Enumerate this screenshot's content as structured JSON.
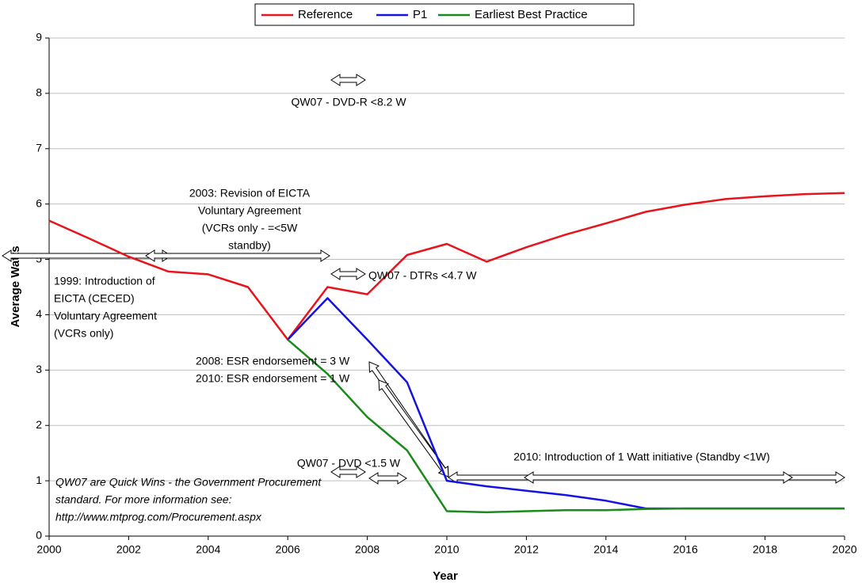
{
  "chart_data": {
    "type": "line",
    "x": [
      2000,
      2001,
      2002,
      2003,
      2004,
      2005,
      2006,
      2007,
      2008,
      2009,
      2010,
      2011,
      2012,
      2013,
      2014,
      2015,
      2016,
      2017,
      2018,
      2019,
      2020
    ],
    "series": [
      {
        "name": "Reference",
        "color": "#e8141c",
        "values": [
          5.7,
          5.38,
          5.05,
          4.78,
          4.73,
          4.5,
          3.55,
          4.5,
          4.37,
          5.08,
          5.28,
          4.96,
          5.22,
          5.45,
          5.65,
          5.86,
          5.99,
          6.09,
          6.14,
          6.18,
          6.2
        ]
      },
      {
        "name": "P1",
        "color": "#1414e0",
        "values": [
          null,
          null,
          null,
          null,
          null,
          null,
          3.55,
          4.3,
          3.55,
          2.78,
          1.0,
          0.9,
          0.82,
          0.74,
          0.64,
          0.5,
          0.5,
          0.5,
          0.5,
          0.5,
          0.5
        ]
      },
      {
        "name": "Earliest Best Practice",
        "color": "#1a8a1a",
        "values": [
          null,
          null,
          null,
          null,
          null,
          null,
          3.55,
          2.93,
          2.15,
          1.55,
          0.45,
          0.43,
          0.45,
          0.47,
          0.47,
          0.49,
          0.5,
          0.5,
          0.5,
          0.5,
          0.5
        ]
      }
    ],
    "xlabel": "Year",
    "ylabel": "Average Watts",
    "xlim": [
      2000,
      2020
    ],
    "xticks": [
      2000,
      2002,
      2004,
      2006,
      2008,
      2010,
      2012,
      2014,
      2016,
      2018,
      2020
    ],
    "ylim": [
      0,
      9
    ],
    "yticks": [
      0,
      1,
      2,
      3,
      4,
      5,
      6,
      7,
      8,
      9
    ],
    "grid": true,
    "legend": "top",
    "annotations": [
      [
        "QW07 - DVD-R <8.2 W"
      ],
      [
        "2003: Revision of EICTA",
        "Voluntary Agreement",
        "(VCRs only - =<5W",
        "standby)"
      ],
      [
        "1999: Introduction of",
        "EICTA (CECED)",
        "Voluntary Agreement",
        "(VCRs only)"
      ],
      [
        "QW07 - DTRs <4.7 W"
      ],
      [
        "2008: ESR endorsement = 3 W",
        "2010: ESR endorsement = 1 W"
      ],
      [
        "QW07 - DVD <1.5 W"
      ],
      [
        "2010: Introduction of 1 Watt initiative (Standby <1W)"
      ],
      [
        "QW07 are Quick Wins - the Government Procurement",
        "standard. For more information see:",
        "http://www.mtprog.com/Procurement.aspx"
      ]
    ]
  }
}
